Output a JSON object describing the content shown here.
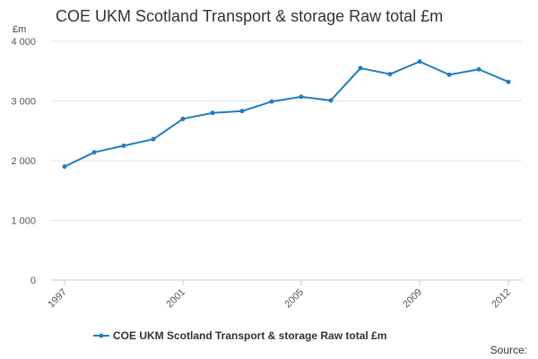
{
  "chart_data": {
    "type": "line",
    "title": "COE UKM Scotland Transport & storage Raw total £m",
    "ylabel": "£m",
    "xlabel": "",
    "ylim": [
      0,
      4000
    ],
    "y_ticks": [
      "0",
      "1 000",
      "2 000",
      "3 000",
      "4 000"
    ],
    "y_tick_values": [
      0,
      1000,
      2000,
      3000,
      4000
    ],
    "x_ticks": [
      "1997",
      "2001",
      "2005",
      "2009",
      "2012"
    ],
    "x_tick_values": [
      1997,
      2001,
      2005,
      2009,
      2012
    ],
    "x": [
      1997,
      1998,
      1999,
      2000,
      2001,
      2002,
      2003,
      2004,
      2005,
      2006,
      2007,
      2008,
      2009,
      2010,
      2011,
      2012
    ],
    "series": [
      {
        "name": "COE UKM Scotland Transport & storage Raw total £m",
        "color": "#1f7dbf",
        "values": [
          1900,
          2140,
          2250,
          2360,
          2700,
          2800,
          2830,
          2990,
          3070,
          3010,
          3550,
          3450,
          3660,
          3440,
          3530,
          3320
        ]
      }
    ],
    "grid": true,
    "legend_position": "bottom-center"
  },
  "footer": {
    "source_label": "Source:"
  }
}
